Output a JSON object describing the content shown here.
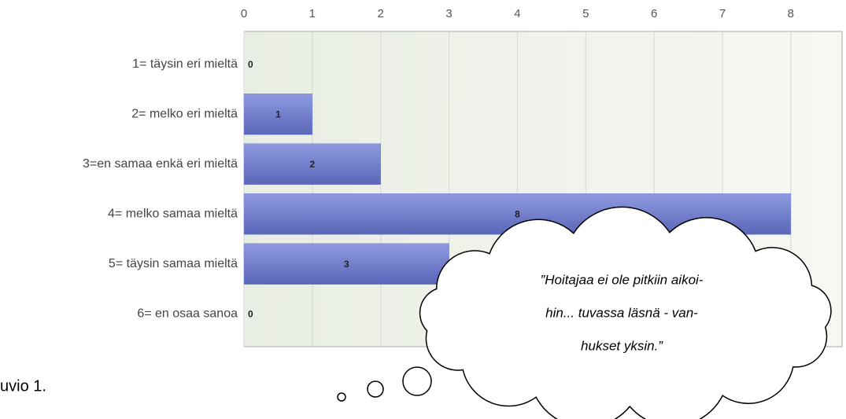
{
  "chart_data": {
    "type": "bar",
    "orientation": "horizontal",
    "categories": [
      "1= täysin eri mieltä",
      "2= melko eri mieltä",
      "3=en samaa enkä eri mieltä",
      "4= melko samaa mieltä",
      "5= täysin samaa mieltä",
      "6= en osaa sanoa"
    ],
    "values": [
      0,
      1,
      2,
      8,
      3,
      0
    ],
    "color": "#7886d7",
    "xlim": [
      0,
      8.75
    ],
    "xticks": [
      0,
      1,
      2,
      3,
      4,
      5,
      6,
      7,
      8
    ],
    "grid": true,
    "annotation": [
      "”Hoitajaa ei ole pitkiin aikoi-",
      "hin... tuvassa läsnä - van-",
      "hukset yksin.”"
    ],
    "caption": "uvio 1."
  }
}
